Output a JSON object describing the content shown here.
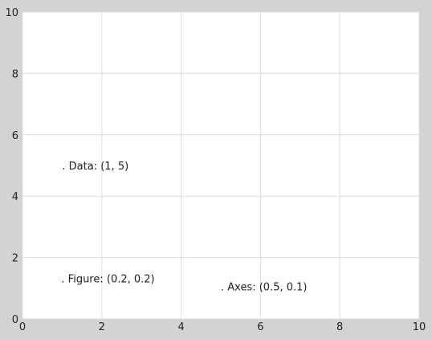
{
  "chart_data": {
    "type": "scatter",
    "title": "",
    "xlabel": "",
    "ylabel": "",
    "xlim": [
      0,
      10
    ],
    "ylim": [
      0,
      10
    ],
    "grid": true,
    "xticks": [
      0,
      2,
      4,
      6,
      8,
      10
    ],
    "yticks": [
      0,
      2,
      4,
      6,
      8,
      10
    ],
    "xtick_labels": [
      "0",
      "2",
      "4",
      "6",
      "8",
      "10"
    ],
    "ytick_labels": [
      "0",
      "2",
      "4",
      "6",
      "8",
      "10"
    ],
    "annotations": [
      {
        "text": ". Data: (1, 5)",
        "x": 1.0,
        "y": 5.0
      },
      {
        "text": ". Figure: (0.2, 0.2)",
        "x": 0.98,
        "y": 1.32
      },
      {
        "text": ". Axes: (0.5, 0.1)",
        "x": 5.0,
        "y": 1.06
      }
    ],
    "colors": {
      "figure_background": "#d3d3d3",
      "axes_background": "#ffffff",
      "grid": "#dcdcdc",
      "text": "#222222"
    }
  }
}
